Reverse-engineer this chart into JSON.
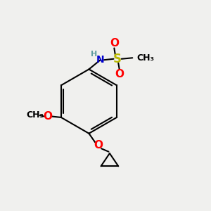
{
  "bg_color": "#f0f0ee",
  "bond_color": "#000000",
  "colors": {
    "O": "#ff0000",
    "N": "#0000cd",
    "S": "#b8b800",
    "H": "#5f9ea0",
    "C": "#000000"
  },
  "bond_width": 1.5
}
